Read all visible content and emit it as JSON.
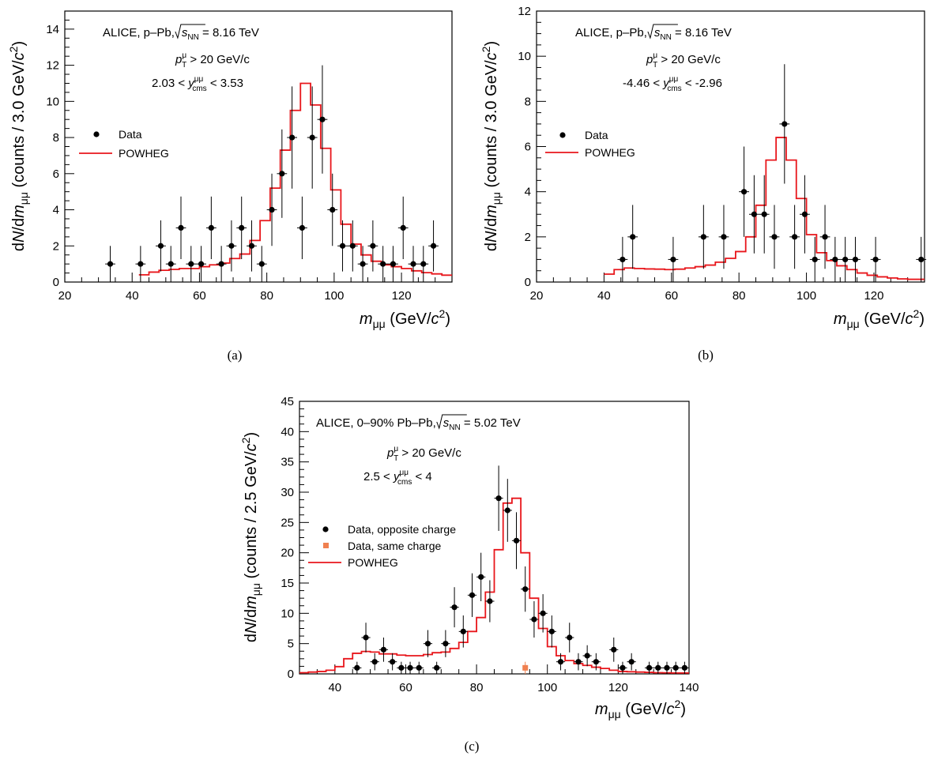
{
  "chart_data": [
    {
      "type": "line",
      "panel_label": "(a)",
      "xlim": [
        20,
        135
      ],
      "ylim": [
        0,
        15
      ],
      "xticks": [
        20,
        40,
        60,
        80,
        100,
        120
      ],
      "yticks": [
        0,
        2,
        4,
        6,
        8,
        10,
        12,
        14
      ],
      "xlabel": {
        "var": "m",
        "sub": "μμ",
        "unit_pre": " (GeV/",
        "unit_var": "c",
        "unit_sup": "2",
        "unit_post": ")"
      },
      "ylabel": {
        "prefix": "dN/dm",
        "sub": "μμ",
        "mid": " (counts / 3.0 GeV/",
        "var": "c",
        "sup": "2",
        "post": ")"
      },
      "annotations": {
        "experiment_pre": "ALICE, p–Pb, ",
        "sqrt_s": "s",
        "sqrt_sub": "NN",
        "energy": " = 8.16 TeV",
        "pt_var": "p",
        "pt_sup": "μ",
        "pt_sub": "T",
        "pt_cut": " > 20 GeV/c",
        "y_lo": "2.03 < ",
        "y_var": "y",
        "y_sup": "μμ",
        "y_sub": "cms",
        "y_hi": " < 3.53"
      },
      "legend": [
        "Data",
        "POWHEG"
      ],
      "series": [
        {
          "name": "Data",
          "x": [
            33.5,
            42.5,
            48.5,
            51.5,
            54.5,
            57.5,
            60.5,
            63.5,
            66.5,
            69.5,
            72.5,
            75.5,
            78.5,
            81.5,
            84.5,
            87.5,
            90.5,
            93.5,
            96.5,
            99.5,
            102.5,
            105.5,
            108.5,
            111.5,
            114.5,
            117.5,
            120.5,
            123.5,
            126.5,
            129.5
          ],
          "y": [
            1,
            1,
            2,
            1,
            3,
            1,
            1,
            3,
            1,
            2,
            3,
            2,
            1,
            4,
            6,
            8,
            3,
            8,
            9,
            4,
            2,
            2,
            1,
            2,
            1,
            1,
            3,
            1,
            1,
            2
          ]
        },
        {
          "name": "POWHEG",
          "x": [
            42,
            45,
            48,
            51,
            54,
            57,
            60,
            63,
            66,
            69,
            72,
            75,
            78,
            81,
            84,
            87,
            90,
            93,
            96,
            99,
            102,
            105,
            108,
            111,
            114,
            117,
            120,
            123,
            126,
            129,
            132,
            135
          ],
          "y": [
            0.4,
            0.55,
            0.65,
            0.7,
            0.75,
            0.75,
            0.85,
            0.95,
            1.05,
            1.3,
            1.55,
            2.3,
            3.4,
            5.2,
            7.3,
            9.5,
            11.0,
            9.8,
            7.4,
            5.1,
            3.2,
            2.1,
            1.5,
            1.15,
            0.95,
            0.85,
            0.75,
            0.62,
            0.52,
            0.45,
            0.38,
            0.38
          ]
        }
      ]
    },
    {
      "type": "line",
      "panel_label": "(b)",
      "xlim": [
        20,
        135
      ],
      "ylim": [
        0,
        12
      ],
      "xticks": [
        20,
        40,
        60,
        80,
        100,
        120
      ],
      "yticks": [
        0,
        2,
        4,
        6,
        8,
        10,
        12
      ],
      "xlabel": {
        "var": "m",
        "sub": "μμ",
        "unit_pre": " (GeV/",
        "unit_var": "c",
        "unit_sup": "2",
        "unit_post": ")"
      },
      "ylabel": {
        "prefix": "dN/dm",
        "sub": "μμ",
        "mid": " (counts / 3.0 GeV/",
        "var": "c",
        "sup": "2",
        "post": ")"
      },
      "annotations": {
        "experiment_pre": "ALICE, p–Pb, ",
        "sqrt_s": "s",
        "sqrt_sub": "NN",
        "energy": " = 8.16 TeV",
        "pt_var": "p",
        "pt_sup": "μ",
        "pt_sub": "T",
        "pt_cut": " > 20 GeV/c",
        "y_lo": "-4.46 < ",
        "y_var": "y",
        "y_sup": "μμ",
        "y_sub": "cms",
        "y_hi": " < -2.96"
      },
      "legend": [
        "Data",
        "POWHEG"
      ],
      "series": [
        {
          "name": "Data",
          "x": [
            45.5,
            48.5,
            60.5,
            69.5,
            75.5,
            81.5,
            84.5,
            87.5,
            90.5,
            93.5,
            96.5,
            99.5,
            102.5,
            105.5,
            108.5,
            111.5,
            114.5,
            120.5,
            134
          ],
          "y": [
            1,
            2,
            1,
            2,
            2,
            4,
            3,
            3,
            2,
            7,
            2,
            3,
            1,
            2,
            1,
            1,
            1,
            1,
            1
          ]
        },
        {
          "name": "POWHEG",
          "x": [
            40,
            43,
            46,
            49,
            52,
            55,
            58,
            61,
            64,
            67,
            70,
            73,
            76,
            79,
            82,
            85,
            88,
            91,
            94,
            97,
            100,
            103,
            106,
            109,
            112,
            115,
            118,
            121,
            124,
            127,
            130,
            135
          ],
          "y": [
            0.35,
            0.55,
            0.62,
            0.6,
            0.58,
            0.57,
            0.55,
            0.57,
            0.62,
            0.68,
            0.75,
            0.88,
            1.05,
            1.35,
            2.0,
            3.4,
            5.4,
            6.4,
            5.4,
            3.7,
            2.1,
            1.3,
            0.95,
            0.72,
            0.55,
            0.4,
            0.3,
            0.23,
            0.18,
            0.14,
            0.12,
            0.12
          ]
        }
      ]
    },
    {
      "type": "line",
      "panel_label": "(c)",
      "xlim": [
        30,
        140
      ],
      "ylim": [
        0,
        45
      ],
      "xticks": [
        40,
        60,
        80,
        100,
        120,
        140
      ],
      "yticks": [
        0,
        5,
        10,
        15,
        20,
        25,
        30,
        35,
        40,
        45
      ],
      "xlabel": {
        "var": "m",
        "sub": "μμ",
        "unit_pre": " (GeV/",
        "unit_var": "c",
        "unit_sup": "2",
        "unit_post": ")"
      },
      "ylabel": {
        "prefix": "dN/dm",
        "sub": "μμ",
        "mid": " (counts / 2.5 GeV/",
        "var": "c",
        "sup": "2",
        "post": ")"
      },
      "annotations": {
        "experiment_pre": "ALICE, 0–90% Pb–Pb, ",
        "sqrt_s": "s",
        "sqrt_sub": "NN",
        "energy": " = 5.02 TeV",
        "pt_var": "p",
        "pt_sup": "μ",
        "pt_sub": "T",
        "pt_cut": " > 20 GeV/c",
        "y_lo": "2.5 < ",
        "y_var": "y",
        "y_sup": "μμ",
        "y_sub": "cms",
        "y_hi": " < 4"
      },
      "legend": [
        "Data, opposite charge",
        "Data, same charge",
        "POWHEG"
      ],
      "series": [
        {
          "name": "Data, opposite charge",
          "x": [
            46.25,
            48.75,
            51.25,
            53.75,
            56.25,
            58.75,
            61.25,
            63.75,
            66.25,
            68.75,
            71.25,
            73.75,
            76.25,
            78.75,
            81.25,
            83.75,
            86.25,
            88.75,
            91.25,
            93.75,
            96.25,
            98.75,
            101.25,
            103.75,
            106.25,
            108.75,
            111.25,
            113.75,
            118.75,
            121.25,
            123.75,
            128.75,
            131.25,
            133.75,
            136.25,
            138.75
          ],
          "y": [
            1,
            6,
            2,
            4,
            2,
            1,
            1,
            1,
            5,
            1,
            5,
            11,
            7,
            13,
            16,
            12,
            29,
            27,
            22,
            14,
            9,
            10,
            7,
            2,
            6,
            2,
            3,
            2,
            4,
            1,
            2,
            1,
            1,
            1,
            1,
            1
          ]
        },
        {
          "name": "Data, same charge",
          "x": [
            93.75
          ],
          "y": [
            1
          ]
        },
        {
          "name": "POWHEG",
          "x": [
            30,
            32.5,
            35,
            37.5,
            40,
            42.5,
            45,
            47.5,
            50,
            52.5,
            55,
            57.5,
            60,
            62.5,
            65,
            67.5,
            70,
            72.5,
            75,
            77.5,
            80,
            82.5,
            85,
            87.5,
            90,
            92.5,
            95,
            97.5,
            100,
            102.5,
            105,
            107.5,
            110,
            112.5,
            115,
            117.5,
            120,
            122.5,
            125,
            127.5,
            130,
            132.5,
            135,
            137.5,
            140
          ],
          "y": [
            0.2,
            0.3,
            0.4,
            0.6,
            1.2,
            2.5,
            3.4,
            3.7,
            3.6,
            3.3,
            3.3,
            3.1,
            3.0,
            3.0,
            3.2,
            3.5,
            3.6,
            4.2,
            5.2,
            7.0,
            9.3,
            13.5,
            20.5,
            28.2,
            29.0,
            20.0,
            12.5,
            7.5,
            4.5,
            3.0,
            2.2,
            1.7,
            1.4,
            1.1,
            0.9,
            0.6,
            0.4,
            0.35,
            0.3,
            0.25,
            0.2,
            0.18,
            0.15,
            0.15,
            0.15
          ]
        }
      ],
      "colors": {
        "data": "#000000",
        "same_charge": "#f08050",
        "powheg": "#e8161b"
      }
    }
  ]
}
